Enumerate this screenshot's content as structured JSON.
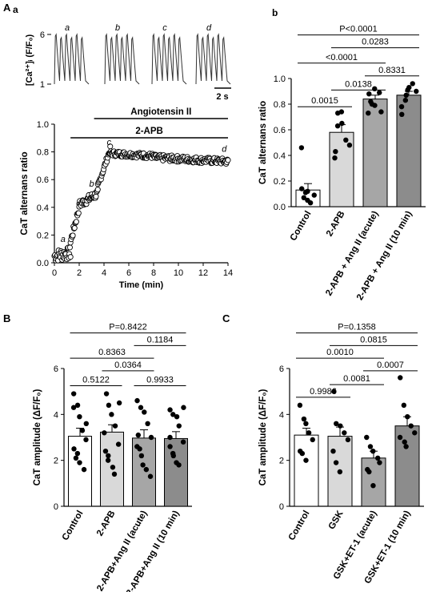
{
  "panel_labels": {
    "A": "A",
    "a": "a",
    "b": "b",
    "B": "B",
    "C": "C"
  },
  "traces": {
    "ylabel": "[Ca²⁺]ᵢ (F/F₀)",
    "ymin": "1",
    "ymax": "6",
    "scalebar": "2 s",
    "letters": [
      "a",
      "b",
      "c",
      "d"
    ],
    "beats_per_group": 6
  },
  "chart_data": [
    {
      "id": "Aa",
      "type": "scatter",
      "title": "",
      "xlabel": "Time (min)",
      "ylabel": "CaT alternans ratio",
      "xlim": [
        0,
        14
      ],
      "ylim": [
        0,
        1.0
      ],
      "xticks": [
        0,
        2,
        4,
        6,
        8,
        10,
        12,
        14
      ],
      "yticks": [
        0.0,
        0.2,
        0.4,
        0.6,
        0.8,
        1.0
      ],
      "treatment_bars": [
        {
          "label": "Angiotensin II",
          "start": 3.2,
          "end": 14
        },
        {
          "label": "2-APB",
          "start": 1.3,
          "end": 14
        }
      ],
      "annotations": [
        {
          "text": "a",
          "x": 0.7,
          "y": 0.15
        },
        {
          "text": "b",
          "x": 3.0,
          "y": 0.55
        },
        {
          "text": "c",
          "x": 4.4,
          "y": 0.85
        },
        {
          "text": "d",
          "x": 13.7,
          "y": 0.8
        }
      ],
      "series": [
        {
          "segments": [
            {
              "x0": 0.0,
              "x1": 1.3,
              "y0": 0.05,
              "y1": 0.07,
              "noise": 0.045,
              "n": 28
            },
            {
              "x0": 1.3,
              "x1": 2.0,
              "y0": 0.15,
              "y1": 0.4,
              "noise": 0.03,
              "n": 16
            },
            {
              "x0": 2.0,
              "x1": 3.5,
              "y0": 0.42,
              "y1": 0.5,
              "noise": 0.03,
              "n": 32
            },
            {
              "x0": 3.5,
              "x1": 4.5,
              "y0": 0.55,
              "y1": 0.82,
              "noise": 0.02,
              "n": 20
            },
            {
              "x0": 4.5,
              "x1": 8.0,
              "y0": 0.79,
              "y1": 0.77,
              "noise": 0.02,
              "n": 70
            },
            {
              "x0": 8.0,
              "x1": 14.0,
              "y0": 0.76,
              "y1": 0.73,
              "noise": 0.022,
              "n": 120
            }
          ]
        }
      ]
    },
    {
      "id": "Ab",
      "type": "bar",
      "title": "",
      "ylabel": "CaT alternans ratio",
      "ylim": [
        0,
        1.0
      ],
      "yticks": [
        0.0,
        0.2,
        0.4,
        0.6,
        0.8,
        1.0
      ],
      "categories": [
        "Control",
        "2-APB",
        "2-APB + Ang II (acute)",
        "2-APB + Ang II (10 min)"
      ],
      "values": [
        0.13,
        0.58,
        0.84,
        0.87
      ],
      "sem": [
        0.05,
        0.06,
        0.03,
        0.03
      ],
      "colors": [
        "#ffffff",
        "#d9d9d9",
        "#a6a6a6",
        "#8c8c8c"
      ],
      "points": [
        [
          0.46,
          0.11,
          0.05,
          0.03,
          0.09,
          0.14,
          0.07,
          0.12
        ],
        [
          0.43,
          0.73,
          0.65,
          0.52,
          0.48,
          0.38,
          0.63,
          0.74
        ],
        [
          0.73,
          0.8,
          0.92,
          0.89,
          0.74,
          0.88,
          0.82,
          0.79
        ],
        [
          0.72,
          0.83,
          0.93,
          0.96,
          0.9,
          0.78,
          0.87,
          0.91
        ]
      ],
      "comparisons": [
        {
          "label": "P<0.0001",
          "a": 0,
          "b": 3,
          "y": 1.34
        },
        {
          "label": "0.0283",
          "a": 1,
          "b": 3,
          "y": 1.24
        },
        {
          "label": "<0.0001",
          "a": 0,
          "b": 2,
          "y": 1.12
        },
        {
          "label": "0.8331",
          "a": 2,
          "b": 3,
          "y": 1.02
        },
        {
          "label": "0.0138",
          "a": 1,
          "b": 2,
          "y": 0.91
        },
        {
          "label": "0.0015",
          "a": 0,
          "b": 1,
          "y": 0.78
        }
      ]
    },
    {
      "id": "B",
      "type": "bar",
      "title": "",
      "ylabel": "CaT amplitude (ΔF/F₀)",
      "ylim": [
        0,
        6
      ],
      "yticks": [
        0,
        2,
        4,
        6
      ],
      "categories": [
        "Control",
        "2-APB",
        "2-APB+Ang II (acute)",
        "2-APB+Ang II (10 min)"
      ],
      "values": [
        3.05,
        3.23,
        2.97,
        2.95
      ],
      "sem": [
        0.35,
        0.32,
        0.36,
        0.3
      ],
      "colors": [
        "#ffffff",
        "#d9d9d9",
        "#a6a6a6",
        "#8c8c8c"
      ],
      "points": [
        [
          4.9,
          4.4,
          3.9,
          3.3,
          2.9,
          2.5,
          2.1,
          1.9,
          1.6,
          3.6,
          4.3,
          2.3
        ],
        [
          4.9,
          4.4,
          4.0,
          3.5,
          2.7,
          2.4,
          2.0,
          1.7,
          1.4,
          4.5,
          3.2,
          2.2
        ],
        [
          4.6,
          4.3,
          4.1,
          3.6,
          3.0,
          2.6,
          2.2,
          1.8,
          1.6,
          1.3,
          3.1,
          2.5
        ],
        [
          4.2,
          4.0,
          3.9,
          3.5,
          2.8,
          2.6,
          2.3,
          1.9,
          1.8,
          4.3,
          3.0,
          2.2
        ]
      ],
      "comparisons": [
        {
          "label": "P=0.8422",
          "a": 0,
          "b": 3,
          "y": 7.55
        },
        {
          "label": "0.1184",
          "a": 2,
          "b": 3,
          "y": 7.0
        },
        {
          "label": "0.8363",
          "a": 0,
          "b": 2,
          "y": 6.45
        },
        {
          "label": "0.0364",
          "a": 1,
          "b": 2,
          "y": 5.9
        },
        {
          "label": "0.5122",
          "a": 0,
          "b": 1,
          "y": 5.25
        },
        {
          "label": "0.9933",
          "a": 2,
          "b": 3,
          "y": 5.25
        }
      ]
    },
    {
      "id": "C",
      "type": "bar",
      "title": "",
      "ylabel": "CaT amplitude (ΔF/F₀)",
      "ylim": [
        0,
        6
      ],
      "yticks": [
        0,
        2,
        4,
        6
      ],
      "categories": [
        "Control",
        "GSK",
        "GSK+ET-1 (acute)",
        "GSK+ET-1 (10 min)"
      ],
      "values": [
        3.1,
        3.05,
        2.1,
        3.5
      ],
      "sem": [
        0.3,
        0.4,
        0.3,
        0.4
      ],
      "colors": [
        "#ffffff",
        "#d9d9d9",
        "#a6a6a6",
        "#8c8c8c"
      ],
      "points": [
        [
          4.4,
          3.8,
          3.6,
          3.2,
          2.9,
          2.4,
          2.3,
          2.0
        ],
        [
          5.0,
          3.6,
          3.5,
          3.2,
          2.9,
          2.4,
          1.9,
          1.5
        ],
        [
          3.0,
          2.6,
          2.4,
          2.1,
          1.9,
          1.6,
          1.5,
          0.9
        ],
        [
          5.6,
          4.4,
          3.9,
          3.5,
          3.2,
          3.0,
          2.8,
          2.6
        ]
      ],
      "comparisons": [
        {
          "label": "P=0.1358",
          "a": 0,
          "b": 3,
          "y": 7.55
        },
        {
          "label": "0.0815",
          "a": 1,
          "b": 3,
          "y": 7.0
        },
        {
          "label": "0.0010",
          "a": 0,
          "b": 2,
          "y": 6.45
        },
        {
          "label": "0.0007",
          "a": 2,
          "b": 3,
          "y": 5.9
        },
        {
          "label": "0.0081",
          "a": 1,
          "b": 2,
          "y": 5.3
        },
        {
          "label": "0.9986",
          "a": 0,
          "b": 1,
          "y": 4.75
        }
      ]
    }
  ]
}
